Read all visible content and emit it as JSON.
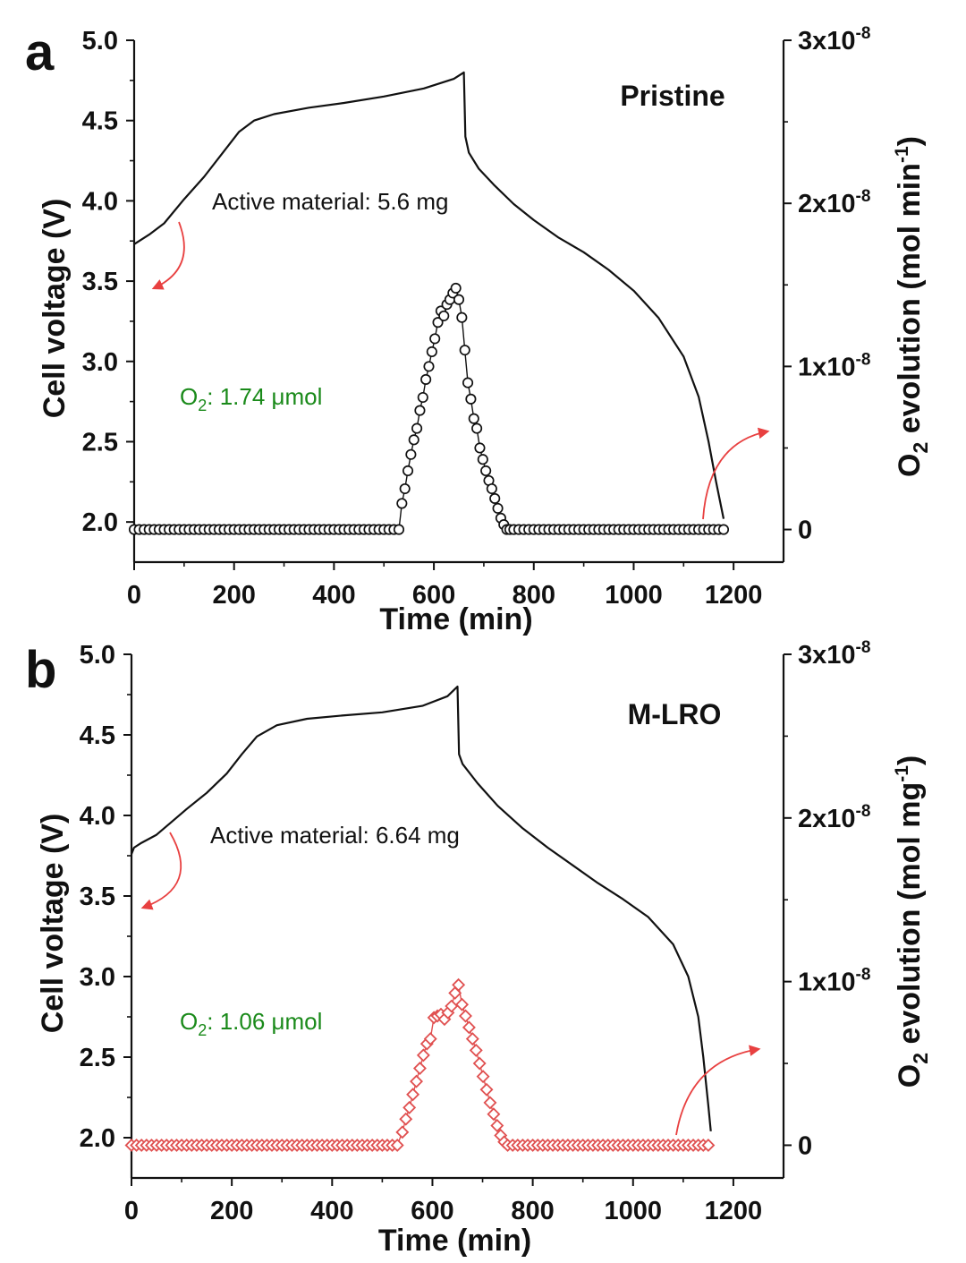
{
  "chart_data": [
    {
      "panel_label": "a",
      "type": "line",
      "sample": "Pristine",
      "active_material": "Active material: 5.6 mg",
      "o2_label": "O",
      "o2_sub": "2",
      "o2_value": ": 1.74 μmol",
      "xlabel": "Time (min)",
      "ylabel": "Cell voltage (V)",
      "y2label_pre": "O",
      "y2label_sub": "2",
      "y2label_mid": " evolution (mol min",
      "y2label_sup": "-1",
      "y2label_end": ")",
      "xlim": [
        0,
        1300
      ],
      "ylim": [
        1.75,
        5.0
      ],
      "y2lim": [
        -2e-09,
        3e-08
      ],
      "xticks": [
        "0",
        "200",
        "400",
        "600",
        "800",
        "1000",
        "1200"
      ],
      "yticks": [
        "2.0",
        "2.5",
        "3.0",
        "3.5",
        "4.0",
        "4.5",
        "5.0"
      ],
      "y2ticks": [
        {
          "value": 0,
          "base": "0",
          "exp": ""
        },
        {
          "value": 1e-08,
          "base": "1x10",
          "exp": "-8"
        },
        {
          "value": 2e-08,
          "base": "2x10",
          "exp": "-8"
        },
        {
          "value": 3e-08,
          "base": "3x10",
          "exp": "-8"
        }
      ],
      "voltage_series": {
        "name": "Cell voltage",
        "color": "#111111",
        "x": [
          0,
          30,
          60,
          100,
          140,
          180,
          210,
          240,
          280,
          350,
          420,
          500,
          580,
          640,
          660,
          663,
          670,
          690,
          720,
          760,
          800,
          850,
          900,
          950,
          1000,
          1050,
          1100,
          1130,
          1150,
          1165,
          1180
        ],
        "y": [
          3.73,
          3.79,
          3.86,
          4.01,
          4.15,
          4.31,
          4.43,
          4.5,
          4.54,
          4.58,
          4.61,
          4.65,
          4.7,
          4.76,
          4.8,
          4.4,
          4.3,
          4.2,
          4.1,
          3.98,
          3.88,
          3.77,
          3.68,
          3.57,
          3.44,
          3.27,
          3.03,
          2.78,
          2.5,
          2.25,
          2.02
        ]
      },
      "o2_series": {
        "name": "O2 evolution",
        "color": "#111111",
        "marker": "circle",
        "x": [
          0,
          10,
          20,
          30,
          40,
          50,
          60,
          70,
          80,
          90,
          100,
          110,
          120,
          130,
          140,
          150,
          160,
          170,
          180,
          190,
          200,
          210,
          220,
          230,
          240,
          250,
          260,
          270,
          280,
          290,
          300,
          310,
          320,
          330,
          340,
          350,
          360,
          370,
          380,
          390,
          400,
          410,
          420,
          430,
          440,
          450,
          460,
          470,
          480,
          490,
          500,
          510,
          520,
          530,
          536,
          542,
          548,
          554,
          560,
          566,
          572,
          578,
          584,
          590,
          596,
          602,
          608,
          614,
          620,
          626,
          632,
          638,
          644,
          650,
          656,
          662,
          668,
          674,
          680,
          686,
          692,
          698,
          704,
          710,
          716,
          722,
          728,
          734,
          740,
          746,
          752,
          760,
          770,
          780,
          790,
          800,
          810,
          820,
          830,
          840,
          850,
          860,
          870,
          880,
          890,
          900,
          910,
          920,
          930,
          940,
          950,
          960,
          970,
          980,
          990,
          1000,
          1010,
          1020,
          1030,
          1040,
          1050,
          1060,
          1070,
          1080,
          1090,
          1100,
          1110,
          1120,
          1130,
          1140,
          1150,
          1160,
          1170,
          1180
        ],
        "y": [
          0,
          0,
          0,
          0,
          0,
          0,
          0,
          0,
          0,
          0,
          0,
          0,
          0,
          0,
          0,
          0,
          0,
          0,
          0,
          0,
          0,
          0,
          0,
          0,
          0,
          0,
          0,
          0,
          0,
          0,
          0,
          0,
          0,
          0,
          0,
          0,
          0,
          0,
          0,
          0,
          0,
          0,
          0,
          0,
          0,
          0,
          0,
          0,
          0,
          0,
          0,
          0,
          0,
          0,
          1.6e-09,
          2.5e-09,
          3.6e-09,
          4.6e-09,
          5.5e-09,
          6.2e-09,
          7.3e-09,
          8.1e-09,
          9.2e-09,
          1e-08,
          1.09e-08,
          1.17e-08,
          1.27e-08,
          1.34e-08,
          1.31e-08,
          1.38e-08,
          1.41e-08,
          1.45e-08,
          1.48e-08,
          1.41e-08,
          1.3e-08,
          1.1e-08,
          9e-09,
          8e-09,
          6.8e-09,
          6.2e-09,
          5e-09,
          4.3e-09,
          3.6e-09,
          3e-09,
          2.5e-09,
          1.9e-09,
          1.3e-09,
          7e-10,
          3e-10,
          0,
          0,
          0,
          0,
          0,
          0,
          0,
          0,
          0,
          0,
          0,
          0,
          0,
          0,
          0,
          0,
          0,
          0,
          0,
          0,
          0,
          0,
          0,
          0,
          0,
          0,
          0,
          0,
          0,
          0,
          0,
          0,
          0,
          0,
          0,
          0,
          0,
          0,
          0,
          0,
          0,
          0,
          0,
          0,
          0
        ]
      }
    },
    {
      "panel_label": "b",
      "type": "line",
      "sample": "M-LRO",
      "active_material": "Active material: 6.64 mg",
      "o2_label": "O",
      "o2_sub": "2",
      "o2_value": ": 1.06 μmol",
      "xlabel": "Time (min)",
      "ylabel": "Cell voltage (V)",
      "y2label_pre": "O",
      "y2label_sub": "2",
      "y2label_mid": " evolution (mol mg",
      "y2label_sup": "-1",
      "y2label_end": ")",
      "xlim": [
        0,
        1300
      ],
      "ylim": [
        1.75,
        5.0
      ],
      "y2lim": [
        -2e-09,
        3e-08
      ],
      "xticks": [
        "0",
        "200",
        "400",
        "600",
        "800",
        "1000",
        "1200"
      ],
      "yticks": [
        "2.0",
        "2.5",
        "3.0",
        "3.5",
        "4.0",
        "4.5",
        "5.0"
      ],
      "y2ticks": [
        {
          "value": 0,
          "base": "0",
          "exp": ""
        },
        {
          "value": 1e-08,
          "base": "1x10",
          "exp": "-8"
        },
        {
          "value": 2e-08,
          "base": "2x10",
          "exp": "-8"
        },
        {
          "value": 3e-08,
          "base": "3x10",
          "exp": "-8"
        }
      ],
      "voltage_series": {
        "name": "Cell voltage",
        "color": "#111111",
        "x": [
          0,
          5,
          20,
          50,
          80,
          110,
          150,
          190,
          220,
          250,
          290,
          350,
          420,
          500,
          580,
          630,
          650,
          653,
          660,
          690,
          730,
          780,
          830,
          880,
          930,
          980,
          1030,
          1080,
          1110,
          1130,
          1140,
          1150,
          1155
        ],
        "y": [
          3.76,
          3.8,
          3.83,
          3.88,
          3.96,
          4.04,
          4.14,
          4.26,
          4.38,
          4.49,
          4.56,
          4.6,
          4.62,
          4.64,
          4.68,
          4.74,
          4.8,
          4.38,
          4.32,
          4.2,
          4.06,
          3.92,
          3.8,
          3.69,
          3.58,
          3.48,
          3.37,
          3.2,
          3.0,
          2.75,
          2.5,
          2.2,
          2.04
        ]
      },
      "o2_series": {
        "name": "O2 evolution",
        "color": "#e05050",
        "marker": "diamond",
        "x": [
          0,
          10,
          20,
          30,
          40,
          50,
          60,
          70,
          80,
          90,
          100,
          110,
          120,
          130,
          140,
          150,
          160,
          170,
          180,
          190,
          200,
          210,
          220,
          230,
          240,
          250,
          260,
          270,
          280,
          290,
          300,
          310,
          320,
          330,
          340,
          350,
          360,
          370,
          380,
          390,
          400,
          410,
          420,
          430,
          440,
          450,
          460,
          470,
          480,
          490,
          500,
          510,
          520,
          530,
          540,
          547,
          554,
          561,
          568,
          575,
          582,
          589,
          596,
          603,
          610,
          617,
          624,
          631,
          638,
          645,
          652,
          659,
          666,
          673,
          680,
          687,
          694,
          701,
          708,
          715,
          722,
          729,
          736,
          743,
          750,
          760,
          770,
          780,
          790,
          800,
          810,
          820,
          830,
          840,
          850,
          860,
          870,
          880,
          890,
          900,
          910,
          920,
          930,
          940,
          950,
          960,
          970,
          980,
          990,
          1000,
          1010,
          1020,
          1030,
          1040,
          1050,
          1060,
          1070,
          1080,
          1090,
          1100,
          1110,
          1120,
          1130,
          1140,
          1150
        ],
        "y": [
          0,
          0,
          0,
          0,
          0,
          0,
          0,
          0,
          0,
          0,
          0,
          0,
          0,
          0,
          0,
          0,
          0,
          0,
          0,
          0,
          0,
          0,
          0,
          0,
          0,
          0,
          0,
          0,
          0,
          0,
          0,
          0,
          0,
          0,
          0,
          0,
          0,
          0,
          0,
          0,
          0,
          0,
          0,
          0,
          0,
          0,
          0,
          0,
          0,
          0,
          0,
          0,
          0,
          0,
          8e-10,
          1.6e-09,
          2.3e-09,
          3.1e-09,
          3.9e-09,
          4.7e-09,
          5.5e-09,
          6.2e-09,
          6.5e-09,
          7.8e-09,
          7.9e-09,
          8e-09,
          7.7e-09,
          8.1e-09,
          8.5e-09,
          9.3e-09,
          9.8e-09,
          8.6e-09,
          7.9e-09,
          7.2e-09,
          6.5e-09,
          5.8e-09,
          5e-09,
          4.2e-09,
          3.4e-09,
          2.6e-09,
          1.9e-09,
          1.2e-09,
          6e-10,
          2e-10,
          0,
          0,
          0,
          0,
          0,
          0,
          0,
          0,
          0,
          0,
          0,
          0,
          0,
          0,
          0,
          0,
          0,
          0,
          0,
          0,
          0,
          0,
          0,
          0,
          0,
          0,
          0,
          0,
          0,
          0,
          0,
          0,
          0,
          0,
          0,
          0,
          0,
          0,
          0,
          0,
          0
        ]
      }
    }
  ],
  "arrow_color": "#e84040",
  "o2_text_color": "#1a8a1a"
}
